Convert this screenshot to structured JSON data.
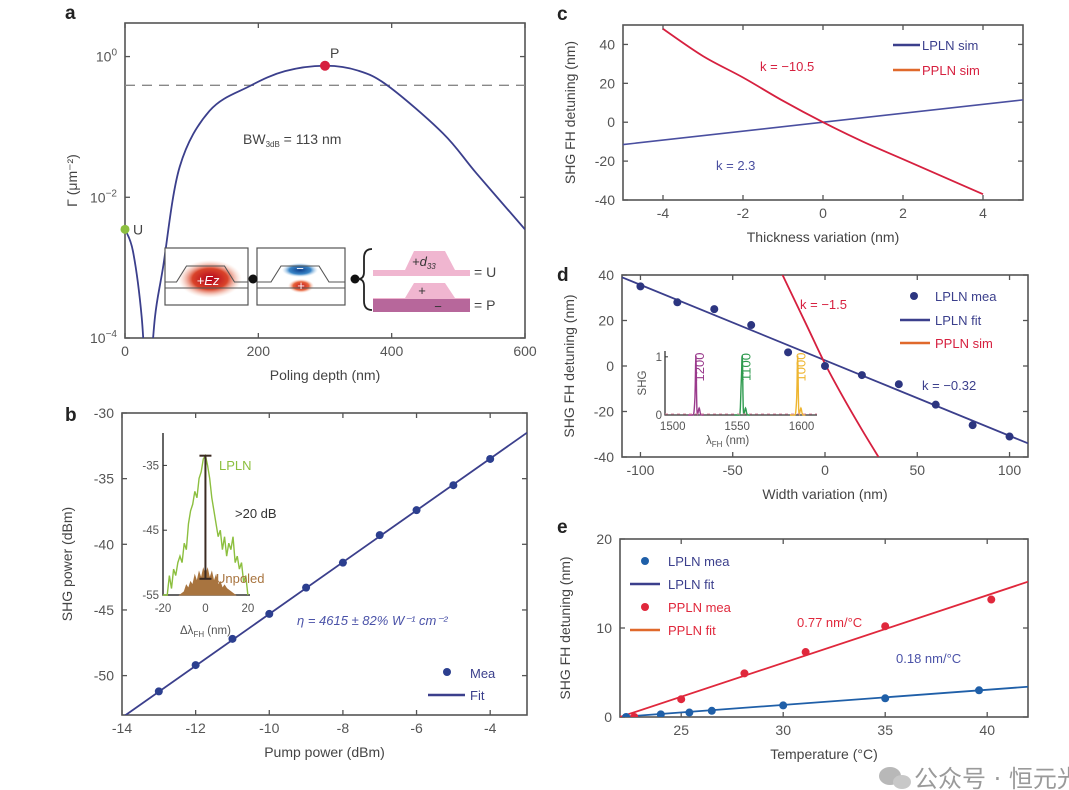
{
  "figure": {
    "watermark": "公众号 · 恒元光电"
  },
  "colors": {
    "navy": "#3b3f8c",
    "red": "#d6203f",
    "orange": "#e0692b",
    "green": "#8cbf3f",
    "brown": "#a8743f",
    "purple": "#9a3a8c",
    "green2": "#2e9a4e",
    "yellow": "#eeb530",
    "blue": "#1f5fa8",
    "gray": "#999999"
  },
  "chart_data": [
    {
      "panel": "a",
      "type": "line",
      "xlabel": "Poling depth (nm)",
      "ylabel": "Γ (μm⁻²)",
      "xlim": [
        0,
        600
      ],
      "ylim": [
        0.0001,
        3
      ],
      "yscale": "log",
      "xticks": [
        0,
        200,
        400,
        600
      ],
      "yticks": [
        0.0001,
        0.01,
        1
      ],
      "series": [
        {
          "x": [
            0,
            12,
            25,
            31
          ],
          "y": [
            0.0035,
            0.0017,
            0.0002,
            2e-05
          ]
        },
        {
          "x": [
            37,
            45,
            57,
            82,
            127,
            187,
            240,
            300,
            350,
            395,
            477,
            527,
            600
          ],
          "y": [
            2e-05,
            0.0002,
            0.001,
            0.027,
            0.17,
            0.38,
            0.62,
            0.74,
            0.63,
            0.38,
            0.081,
            0.022,
            0.0035
          ]
        }
      ],
      "threshold_3dB": 0.39,
      "markers": [
        {
          "label": "P",
          "x": 300,
          "y": 0.74
        },
        {
          "label": "U",
          "x": 0,
          "y": 0.0035
        }
      ],
      "annotation": {
        "base": "BW",
        "sub": "3dB",
        "rest": " = 113 nm"
      },
      "schematic": {
        "mode_label": "+Ez",
        "minus": "−",
        "plus": "+",
        "d33_base": "+d",
        "d33_sub": "33",
        "eq_u": "= U",
        "eq_p": "= P"
      }
    },
    {
      "panel": "b",
      "type": "scatter",
      "xlabel": "Pump power (dBm)",
      "ylabel": "SHG power (dBm)",
      "xlim": [
        -14,
        -3
      ],
      "ylim": [
        -53,
        -30
      ],
      "xticks": [
        -14,
        -12,
        -10,
        -8,
        -6,
        -4
      ],
      "yticks": [
        -50,
        -45,
        -40,
        -35,
        -30
      ],
      "measured": {
        "name": "Mea",
        "x": [
          -13,
          -12,
          -11,
          -10,
          -9,
          -8,
          -7,
          -6,
          -5,
          -4
        ],
        "y": [
          -51.2,
          -49.2,
          -47.2,
          -45.3,
          -43.3,
          -41.4,
          -39.3,
          -37.4,
          -35.5,
          -33.5
        ]
      },
      "fit": {
        "name": "Fit",
        "x": [
          -14,
          -3
        ],
        "y": [
          -53.2,
          -31.5
        ]
      },
      "annotation": "η = 4615 ± 82% W⁻¹ cm⁻²",
      "inset": {
        "xlabel_base": "Δλ",
        "xlabel_sub": "FH",
        "xlabel_rest": " (nm)",
        "xlim": [
          -20,
          21
        ],
        "ylim": [
          -55,
          -30
        ],
        "xticks": [
          -20,
          0,
          20
        ],
        "yticks": [
          -55,
          -45,
          -35
        ],
        "lpln": {
          "name": "LPLN",
          "x": [
            -20,
            -18,
            -17,
            -16,
            -15,
            -14,
            -13,
            -12,
            -11,
            -10,
            -9,
            -8,
            -7,
            -6,
            -5,
            -4,
            -3,
            -2,
            -1,
            0,
            1,
            2,
            3,
            4,
            5,
            6,
            7,
            8,
            9,
            10,
            11,
            12,
            13,
            14,
            15,
            16,
            17,
            18,
            19,
            20
          ],
          "y": [
            -55,
            -55,
            -52,
            -54,
            -51,
            -52,
            -50,
            -49,
            -50,
            -47,
            -48,
            -44,
            -42,
            -41,
            -39,
            -40,
            -37,
            -36,
            -34,
            -33.5,
            -35,
            -37,
            -40,
            -42,
            -44,
            -46,
            -45,
            -48,
            -46,
            -49,
            -47,
            -48,
            -46,
            -50,
            -49,
            -51,
            -50,
            -53,
            -52,
            -55
          ]
        },
        "unpoled": {
          "name": "Unpoled",
          "x": [
            -12,
            -10,
            -9,
            -8,
            -7,
            -6,
            -5,
            -4,
            -3,
            -2,
            -1,
            0,
            1,
            2,
            3,
            4,
            5,
            6,
            7,
            8,
            9,
            10,
            12,
            14
          ],
          "y": [
            -55,
            -54.5,
            -53.5,
            -54,
            -53,
            -53.5,
            -52,
            -53,
            -51.5,
            -52.5,
            -51,
            -52,
            -51,
            -52.5,
            -51.5,
            -53,
            -52,
            -53.5,
            -53,
            -54,
            -53.5,
            -54,
            -54.5,
            -55
          ]
        },
        "errorbar": {
          "x": 0,
          "y_top": -33.5,
          "y_bottom": -52.5,
          "label": ">20 dB"
        }
      }
    },
    {
      "panel": "c",
      "type": "line",
      "xlabel": "Thickness variation (nm)",
      "ylabel": "SHG FH detuning (nm)",
      "xlim": [
        -5,
        5
      ],
      "ylim": [
        -40,
        50
      ],
      "xticks": [
        -4,
        -2,
        0,
        2,
        4
      ],
      "yticks": [
        -40,
        -20,
        0,
        20,
        40
      ],
      "series": [
        {
          "name": "LPLN sim",
          "x": [
            -5,
            5
          ],
          "y": [
            -11.5,
            11.5
          ]
        },
        {
          "name": "PPLN sim",
          "x": [
            -4,
            -3,
            -2,
            -1,
            0,
            1,
            2,
            3,
            4
          ],
          "y": [
            48,
            34,
            23,
            11,
            0,
            -10,
            -19,
            -28,
            -37
          ]
        }
      ],
      "annotations": [
        "k = −10.5",
        "k = 2.3"
      ],
      "legend": "top-right"
    },
    {
      "panel": "d",
      "type": "scatter",
      "xlabel": "Width variation (nm)",
      "ylabel": "SHG FH detuning (nm)",
      "xlim": [
        -110,
        110
      ],
      "ylim": [
        -40,
        40
      ],
      "xticks": [
        -100,
        -50,
        0,
        50,
        100
      ],
      "yticks": [
        -40,
        -20,
        0,
        20,
        40
      ],
      "measured": {
        "name": "LPLN mea",
        "x": [
          -100,
          -80,
          -60,
          -40,
          -20,
          0,
          20,
          40,
          60,
          80,
          100
        ],
        "y": [
          35,
          28,
          25,
          18,
          6,
          0,
          -4,
          -8,
          -17,
          -26,
          -31
        ]
      },
      "fit": {
        "name": "LPLN fit",
        "x": [
          -110,
          110
        ],
        "y": [
          39,
          -34
        ]
      },
      "sim": {
        "name": "PPLN sim",
        "x": [
          -23,
          -10,
          0,
          10,
          20,
          29
        ],
        "y": [
          40,
          18,
          1,
          -14,
          -28,
          -40
        ]
      },
      "annotations": [
        "k = −1.5",
        "k = −0.32"
      ],
      "legend": "top-right",
      "inset": {
        "ylabel": "SHG",
        "xlabel_base": "λ",
        "xlabel_sub": "FH",
        "xlabel_rest": " (nm)",
        "xlim": [
          1494,
          1612
        ],
        "ylim": [
          0,
          1.1
        ],
        "xticks": [
          1500,
          1550,
          1600
        ],
        "yticks": [
          0,
          1
        ],
        "peaks": [
          {
            "label": "1200",
            "center": 1518
          },
          {
            "label": "1100",
            "center": 1554
          },
          {
            "label": "1000",
            "center": 1597
          }
        ]
      }
    },
    {
      "panel": "e",
      "type": "scatter",
      "xlabel": "Temperature (°C)",
      "ylabel": "SHG FH detuning (nm)",
      "xlim": [
        22,
        42
      ],
      "ylim": [
        0,
        20
      ],
      "xticks": [
        25,
        30,
        35,
        40
      ],
      "yticks": [
        0,
        10,
        20
      ],
      "series": [
        {
          "name": "LPLN mea",
          "x": [
            22.3,
            24,
            25.4,
            26.5,
            30,
            35,
            39.6
          ],
          "y": [
            0,
            0.3,
            0.5,
            0.7,
            1.3,
            2.1,
            3.0
          ]
        },
        {
          "name": "LPLN fit",
          "x": [
            22,
            42
          ],
          "y": [
            0,
            3.4
          ]
        },
        {
          "name": "PPLN mea",
          "x": [
            22.7,
            25,
            28.1,
            31.1,
            35,
            40.2
          ],
          "y": [
            0,
            2.0,
            4.9,
            7.3,
            10.2,
            13.2
          ]
        },
        {
          "name": "PPLN fit",
          "x": [
            22,
            42
          ],
          "y": [
            0,
            15.2
          ]
        }
      ],
      "annotations": [
        "0.77 nm/°C",
        "0.18 nm/°C"
      ],
      "legend": "top-left"
    }
  ]
}
